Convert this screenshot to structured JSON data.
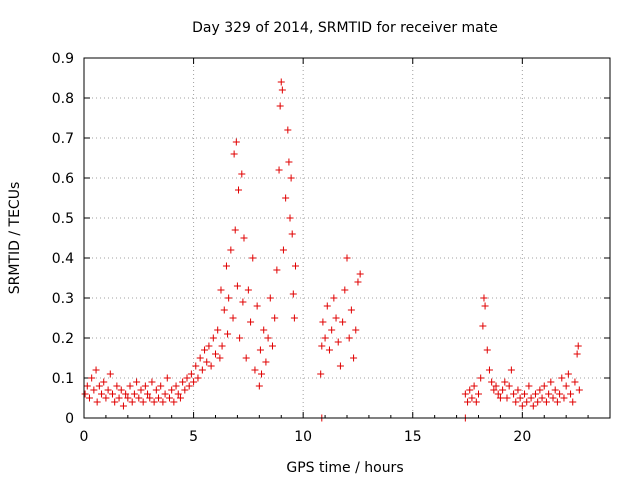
{
  "chart_data": {
    "type": "scatter",
    "title": "Day 329 of 2014, SRMTID for receiver mate",
    "xlabel": "GPS time / hours",
    "ylabel": "SRMTID / TECUs",
    "xlim": [
      0,
      24
    ],
    "ylim": [
      0,
      0.9
    ],
    "xticks": [
      0,
      5,
      10,
      15,
      20
    ],
    "xtick_labels": [
      "0",
      "5",
      "10",
      "15",
      "20"
    ],
    "yticks": [
      0,
      0.1,
      0.2,
      0.3,
      0.4,
      0.5,
      0.6,
      0.7,
      0.8,
      0.9
    ],
    "ytick_labels": [
      "0",
      "0.1",
      "0.2",
      "0.3",
      "0.4",
      "0.5",
      "0.6",
      "0.7",
      "0.8",
      "0.9"
    ],
    "grid": true,
    "marker": "plus",
    "color": "#e00000",
    "series": [
      {
        "name": "SRMTID",
        "points": [
          [
            0.05,
            0.06
          ],
          [
            0.15,
            0.08
          ],
          [
            0.25,
            0.05
          ],
          [
            0.35,
            0.1
          ],
          [
            0.45,
            0.07
          ],
          [
            0.55,
            0.12
          ],
          [
            0.6,
            0.04
          ],
          [
            0.7,
            0.08
          ],
          [
            0.8,
            0.06
          ],
          [
            0.9,
            0.09
          ],
          [
            1.0,
            0.05
          ],
          [
            1.1,
            0.07
          ],
          [
            1.2,
            0.11
          ],
          [
            1.3,
            0.06
          ],
          [
            1.4,
            0.04
          ],
          [
            1.5,
            0.08
          ],
          [
            1.6,
            0.05
          ],
          [
            1.7,
            0.07
          ],
          [
            1.8,
            0.03
          ],
          [
            1.9,
            0.06
          ],
          [
            2.0,
            0.05
          ],
          [
            2.1,
            0.08
          ],
          [
            2.2,
            0.04
          ],
          [
            2.3,
            0.06
          ],
          [
            2.4,
            0.09
          ],
          [
            2.5,
            0.05
          ],
          [
            2.6,
            0.07
          ],
          [
            2.7,
            0.04
          ],
          [
            2.8,
            0.08
          ],
          [
            2.9,
            0.06
          ],
          [
            3.0,
            0.05
          ],
          [
            3.1,
            0.09
          ],
          [
            3.2,
            0.04
          ],
          [
            3.3,
            0.07
          ],
          [
            3.4,
            0.05
          ],
          [
            3.5,
            0.08
          ],
          [
            3.6,
            0.04
          ],
          [
            3.7,
            0.06
          ],
          [
            3.8,
            0.1
          ],
          [
            3.9,
            0.05
          ],
          [
            4.0,
            0.07
          ],
          [
            4.1,
            0.04
          ],
          [
            4.2,
            0.08
          ],
          [
            4.3,
            0.06
          ],
          [
            4.4,
            0.05
          ],
          [
            4.5,
            0.09
          ],
          [
            4.6,
            0.07
          ],
          [
            4.7,
            0.1
          ],
          [
            4.8,
            0.08
          ],
          [
            4.9,
            0.11
          ],
          [
            5.0,
            0.09
          ],
          [
            5.1,
            0.13
          ],
          [
            5.2,
            0.1
          ],
          [
            5.3,
            0.15
          ],
          [
            5.4,
            0.12
          ],
          [
            5.5,
            0.17
          ],
          [
            5.6,
            0.14
          ],
          [
            5.7,
            0.18
          ],
          [
            5.8,
            0.13
          ],
          [
            5.9,
            0.2
          ],
          [
            6.0,
            0.16
          ],
          [
            6.1,
            0.22
          ],
          [
            6.2,
            0.15
          ],
          [
            6.25,
            0.32
          ],
          [
            6.3,
            0.18
          ],
          [
            6.4,
            0.27
          ],
          [
            6.5,
            0.38
          ],
          [
            6.55,
            0.21
          ],
          [
            6.6,
            0.3
          ],
          [
            6.7,
            0.42
          ],
          [
            6.8,
            0.25
          ],
          [
            6.85,
            0.66
          ],
          [
            6.9,
            0.47
          ],
          [
            6.95,
            0.69
          ],
          [
            7.0,
            0.33
          ],
          [
            7.05,
            0.57
          ],
          [
            7.1,
            0.2
          ],
          [
            7.2,
            0.61
          ],
          [
            7.25,
            0.29
          ],
          [
            7.3,
            0.45
          ],
          [
            7.4,
            0.15
          ],
          [
            7.5,
            0.32
          ],
          [
            7.6,
            0.24
          ],
          [
            7.7,
            0.4
          ],
          [
            7.8,
            0.12
          ],
          [
            7.9,
            0.28
          ],
          [
            8.0,
            0.08
          ],
          [
            8.05,
            0.17
          ],
          [
            8.1,
            0.11
          ],
          [
            8.2,
            0.22
          ],
          [
            8.3,
            0.14
          ],
          [
            8.4,
            0.2
          ],
          [
            8.5,
            0.3
          ],
          [
            8.6,
            0.18
          ],
          [
            8.7,
            0.25
          ],
          [
            8.8,
            0.37
          ],
          [
            8.9,
            0.62
          ],
          [
            8.95,
            0.78
          ],
          [
            9.0,
            0.84
          ],
          [
            9.05,
            0.82
          ],
          [
            9.1,
            0.42
          ],
          [
            9.2,
            0.55
          ],
          [
            9.3,
            0.72
          ],
          [
            9.35,
            0.64
          ],
          [
            9.4,
            0.5
          ],
          [
            9.45,
            0.6
          ],
          [
            9.5,
            0.46
          ],
          [
            9.55,
            0.31
          ],
          [
            9.6,
            0.25
          ],
          [
            9.65,
            0.38
          ],
          [
            10.8,
            0.11
          ],
          [
            10.85,
            0.18
          ],
          [
            10.9,
            0.24
          ],
          [
            11.0,
            0.2
          ],
          [
            11.1,
            0.28
          ],
          [
            11.2,
            0.17
          ],
          [
            11.3,
            0.22
          ],
          [
            11.4,
            0.3
          ],
          [
            11.5,
            0.25
          ],
          [
            11.6,
            0.19
          ],
          [
            11.7,
            0.13
          ],
          [
            11.8,
            0.24
          ],
          [
            11.9,
            0.32
          ],
          [
            12.0,
            0.4
          ],
          [
            12.1,
            0.2
          ],
          [
            12.2,
            0.27
          ],
          [
            12.3,
            0.15
          ],
          [
            12.4,
            0.22
          ],
          [
            12.5,
            0.34
          ],
          [
            12.6,
            0.36
          ],
          [
            10.85,
            0.0
          ],
          [
            17.4,
            0.0
          ],
          [
            17.4,
            0.06
          ],
          [
            17.5,
            0.04
          ],
          [
            17.6,
            0.07
          ],
          [
            17.7,
            0.05
          ],
          [
            17.8,
            0.08
          ],
          [
            17.9,
            0.04
          ],
          [
            18.0,
            0.06
          ],
          [
            18.1,
            0.1
          ],
          [
            18.2,
            0.23
          ],
          [
            18.25,
            0.3
          ],
          [
            18.3,
            0.28
          ],
          [
            18.4,
            0.17
          ],
          [
            18.5,
            0.12
          ],
          [
            18.6,
            0.09
          ],
          [
            18.7,
            0.07
          ],
          [
            18.8,
            0.08
          ],
          [
            18.9,
            0.06
          ],
          [
            19.0,
            0.05
          ],
          [
            19.1,
            0.07
          ],
          [
            19.2,
            0.09
          ],
          [
            19.3,
            0.05
          ],
          [
            19.4,
            0.08
          ],
          [
            19.5,
            0.12
          ],
          [
            19.6,
            0.06
          ],
          [
            19.7,
            0.04
          ],
          [
            19.8,
            0.07
          ],
          [
            19.9,
            0.05
          ],
          [
            20.0,
            0.03
          ],
          [
            20.1,
            0.06
          ],
          [
            20.2,
            0.04
          ],
          [
            20.3,
            0.08
          ],
          [
            20.4,
            0.05
          ],
          [
            20.5,
            0.03
          ],
          [
            20.6,
            0.06
          ],
          [
            20.7,
            0.04
          ],
          [
            20.8,
            0.07
          ],
          [
            20.9,
            0.05
          ],
          [
            21.0,
            0.08
          ],
          [
            21.1,
            0.04
          ],
          [
            21.2,
            0.06
          ],
          [
            21.3,
            0.09
          ],
          [
            21.4,
            0.05
          ],
          [
            21.5,
            0.07
          ],
          [
            21.6,
            0.04
          ],
          [
            21.7,
            0.06
          ],
          [
            21.8,
            0.1
          ],
          [
            21.9,
            0.05
          ],
          [
            22.0,
            0.08
          ],
          [
            22.1,
            0.11
          ],
          [
            22.2,
            0.06
          ],
          [
            22.3,
            0.04
          ],
          [
            22.4,
            0.09
          ],
          [
            22.5,
            0.16
          ],
          [
            22.55,
            0.18
          ],
          [
            22.6,
            0.07
          ]
        ]
      }
    ]
  }
}
